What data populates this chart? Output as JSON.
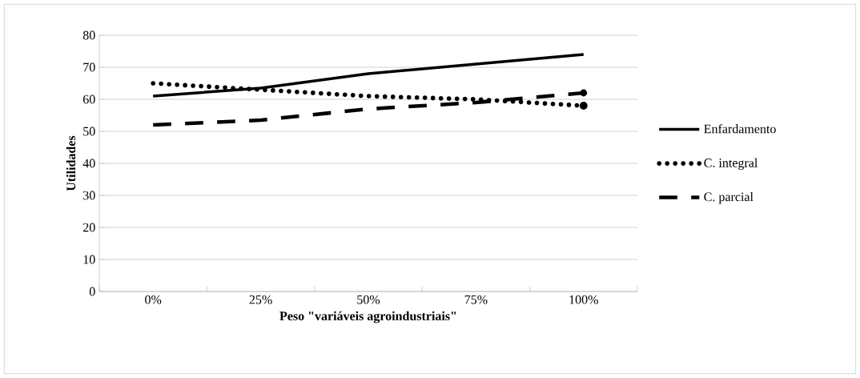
{
  "chart_data": {
    "type": "line",
    "xlabel": "Peso \"variáveis agroindustriais\"",
    "ylabel": "Utilidades",
    "categories": [
      "0%",
      "25%",
      "50%",
      "75%",
      "100%"
    ],
    "series": [
      {
        "name": "Enfardamento",
        "color": "#000000",
        "line_style": "solid",
        "values": [
          61,
          63.5,
          68,
          71,
          74
        ]
      },
      {
        "name": "C. integral",
        "color": "#000000",
        "line_style": "dotted",
        "values": [
          65,
          63,
          61,
          60,
          58
        ]
      },
      {
        "name": "C. parcial",
        "color": "#000000",
        "line_style": "dashed",
        "values": [
          52,
          53.5,
          57,
          59,
          62
        ]
      }
    ],
    "ylim": [
      0,
      80
    ],
    "yticks": [
      0,
      10,
      20,
      30,
      40,
      50,
      60,
      70,
      80
    ],
    "grid": "y",
    "legend": "right",
    "marker": "none"
  }
}
